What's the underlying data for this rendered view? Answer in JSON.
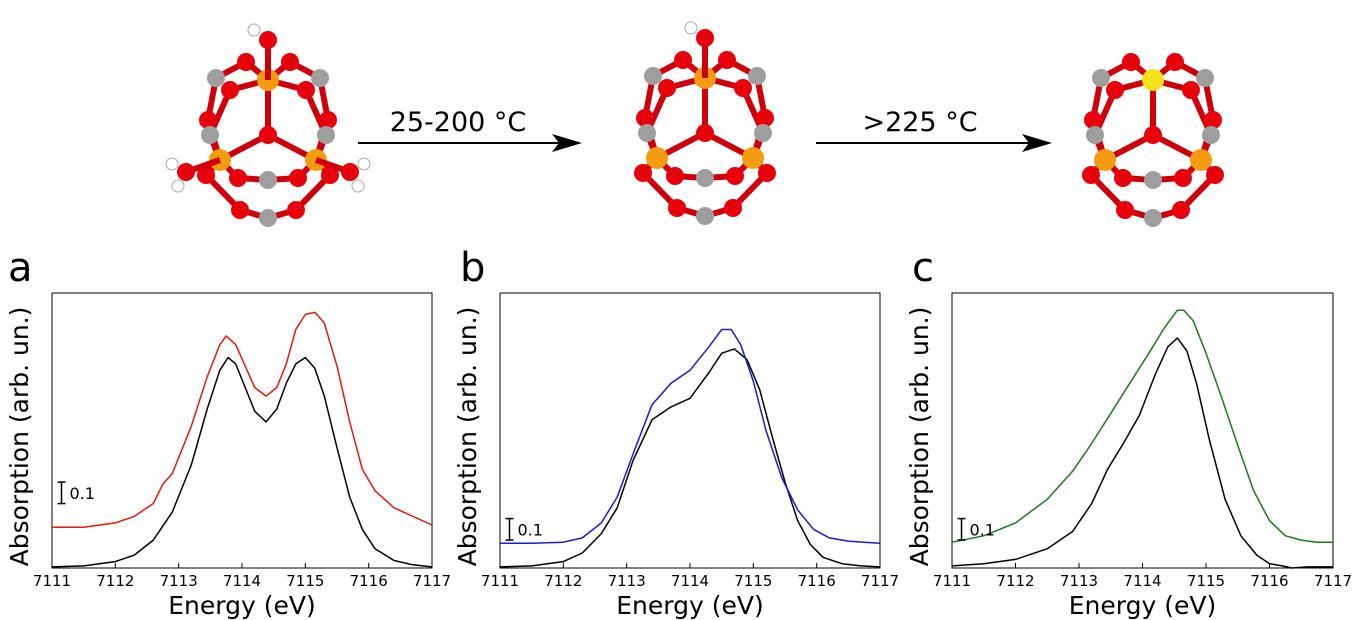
{
  "scheme": {
    "arrow1_label": "25-200 °C",
    "arrow2_label": ">225 °C",
    "colors": {
      "oxygen": "#e8000b",
      "iron": "#f39c12",
      "carbon": "#9e9e9e",
      "hydrogen": "#ffffff",
      "yellow_iron": "#f5e21b"
    }
  },
  "chart_data": [
    {
      "type": "line",
      "panel_label": "a",
      "xlabel": "Energy (eV)",
      "ylabel": "Absorption (arb. un.)",
      "xlim": [
        7111,
        7117
      ],
      "ylim": [
        0,
        1.28
      ],
      "x_ticks": [
        "7111",
        "7112",
        "7113",
        "7114",
        "7115",
        "7116",
        "7117"
      ],
      "scale_bar_label": "0.1",
      "scale_bar": {
        "x": 7111.15,
        "y_bottom": 0.3,
        "height": 0.1
      },
      "series": [
        {
          "color": "#000000",
          "x": [
            7111.0,
            7111.5,
            7112.0,
            7112.3,
            7112.6,
            7112.9,
            7113.2,
            7113.45,
            7113.65,
            7113.78,
            7113.9,
            7114.05,
            7114.2,
            7114.38,
            7114.55,
            7114.7,
            7114.85,
            7115.0,
            7115.15,
            7115.3,
            7115.5,
            7115.7,
            7115.9,
            7116.1,
            7116.4,
            7116.7,
            7117.0
          ],
          "y": [
            0.005,
            0.01,
            0.03,
            0.06,
            0.13,
            0.26,
            0.48,
            0.74,
            0.92,
            0.98,
            0.95,
            0.84,
            0.73,
            0.68,
            0.74,
            0.86,
            0.95,
            0.98,
            0.93,
            0.8,
            0.56,
            0.33,
            0.18,
            0.09,
            0.035,
            0.015,
            0.005
          ]
        },
        {
          "color": "#e8160b",
          "x": [
            7111.0,
            7111.5,
            7112.0,
            7112.3,
            7112.6,
            7112.75,
            7112.9,
            7113.2,
            7113.45,
            7113.65,
            7113.75,
            7113.9,
            7114.05,
            7114.2,
            7114.38,
            7114.55,
            7114.7,
            7114.85,
            7115.0,
            7115.15,
            7115.3,
            7115.5,
            7115.7,
            7115.9,
            7116.1,
            7116.4,
            7116.7,
            7117.0
          ],
          "y": [
            0.19,
            0.19,
            0.21,
            0.24,
            0.3,
            0.39,
            0.44,
            0.66,
            0.89,
            1.04,
            1.08,
            1.04,
            0.94,
            0.84,
            0.8,
            0.84,
            0.95,
            1.11,
            1.18,
            1.19,
            1.14,
            0.94,
            0.68,
            0.46,
            0.36,
            0.28,
            0.24,
            0.2
          ]
        }
      ]
    },
    {
      "type": "line",
      "panel_label": "b",
      "xlabel": "Energy (eV)",
      "ylabel": "Absorption (arb. un.)",
      "xlim": [
        7111,
        7117
      ],
      "ylim": [
        0,
        1.28
      ],
      "x_ticks": [
        "7111",
        "7112",
        "7113",
        "7114",
        "7115",
        "7116",
        "7117"
      ],
      "scale_bar_label": "0.1",
      "scale_bar": {
        "x": 7111.15,
        "y_bottom": 0.13,
        "height": 0.1
      },
      "series": [
        {
          "color": "#000000",
          "x": [
            7111.0,
            7111.5,
            7112.0,
            7112.3,
            7112.6,
            7112.85,
            7113.1,
            7113.4,
            7113.7,
            7114.0,
            7114.3,
            7114.5,
            7114.7,
            7114.9,
            7115.1,
            7115.3,
            7115.5,
            7115.7,
            7115.9,
            7116.1,
            7116.4,
            7116.7,
            7117.0
          ],
          "y": [
            0.005,
            0.01,
            0.03,
            0.07,
            0.16,
            0.28,
            0.5,
            0.69,
            0.75,
            0.79,
            0.91,
            1.0,
            1.02,
            0.97,
            0.83,
            0.61,
            0.4,
            0.22,
            0.11,
            0.05,
            0.02,
            0.01,
            0.005
          ]
        },
        {
          "color": "#1a1ad8",
          "x": [
            7111.0,
            7111.5,
            7112.0,
            7112.3,
            7112.6,
            7112.85,
            7113.1,
            7113.4,
            7113.7,
            7114.0,
            7114.3,
            7114.5,
            7114.65,
            7114.8,
            7115.0,
            7115.2,
            7115.45,
            7115.7,
            7115.95,
            7116.2,
            7116.5,
            7116.75,
            7117.0
          ],
          "y": [
            0.115,
            0.115,
            0.12,
            0.14,
            0.21,
            0.33,
            0.53,
            0.76,
            0.86,
            0.92,
            1.03,
            1.11,
            1.11,
            1.04,
            0.87,
            0.64,
            0.42,
            0.27,
            0.18,
            0.14,
            0.125,
            0.12,
            0.115
          ]
        }
      ]
    },
    {
      "type": "line",
      "panel_label": "c",
      "xlabel": "Energy (eV)",
      "ylabel": "Absorption (arb. un.)",
      "xlim": [
        7111,
        7117
      ],
      "ylim": [
        0,
        1.28
      ],
      "x_ticks": [
        "7111",
        "7112",
        "7113",
        "7114",
        "7115",
        "7116",
        "7117"
      ],
      "scale_bar_label": "0.1",
      "scale_bar": {
        "x": 7111.15,
        "y_bottom": 0.13,
        "height": 0.1
      },
      "series": [
        {
          "color": "#000000",
          "x": [
            7111.0,
            7111.5,
            7112.0,
            7112.5,
            7112.9,
            7113.2,
            7113.45,
            7113.7,
            7113.95,
            7114.2,
            7114.4,
            7114.55,
            7114.7,
            7114.85,
            7115.05,
            7115.3,
            7115.55,
            7115.8,
            7116.0,
            7116.2,
            7116.35,
            7116.6,
            7117.0
          ],
          "y": [
            0.01,
            0.02,
            0.04,
            0.09,
            0.17,
            0.3,
            0.46,
            0.58,
            0.71,
            0.9,
            1.03,
            1.07,
            1.01,
            0.86,
            0.6,
            0.32,
            0.15,
            0.06,
            0.02,
            0.01,
            0.0,
            0.005,
            0.005
          ]
        },
        {
          "color": "#1a7a1a",
          "x": [
            7111.0,
            7111.5,
            7112.0,
            7112.5,
            7112.9,
            7113.2,
            7113.5,
            7113.8,
            7114.1,
            7114.35,
            7114.55,
            7114.65,
            7114.8,
            7115.0,
            7115.25,
            7115.5,
            7115.75,
            7116.0,
            7116.25,
            7116.5,
            7116.75,
            7117.0
          ],
          "y": [
            0.12,
            0.15,
            0.21,
            0.32,
            0.45,
            0.58,
            0.72,
            0.86,
            1.0,
            1.12,
            1.2,
            1.2,
            1.15,
            1.0,
            0.79,
            0.57,
            0.36,
            0.22,
            0.15,
            0.13,
            0.12,
            0.12
          ]
        }
      ]
    }
  ]
}
